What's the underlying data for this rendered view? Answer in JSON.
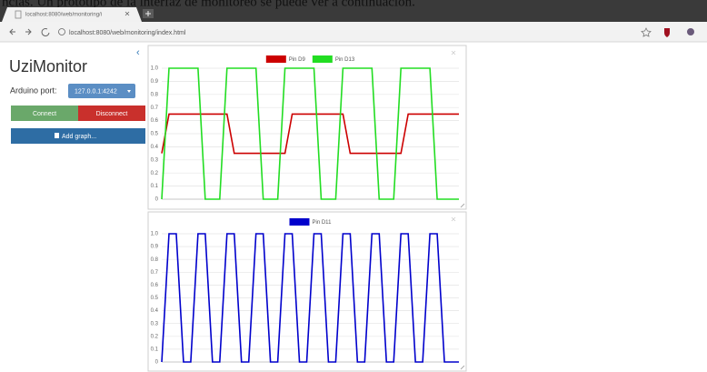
{
  "caption": "ncias. Un prototipo de la interfaz de monitoreo se puede ver a continuación.",
  "browser": {
    "tab_title": "localhost:8080/web/monitoring/i",
    "address": "localhost:8080/web/monitoring/index.html"
  },
  "sidebar": {
    "title": "UziMonitor",
    "port_label": "Arduino port:",
    "port_value": "127.0.0.1:4242",
    "connect": "Connect",
    "disconnect": "Disconnect",
    "add_graph": "Add graph..."
  },
  "chart_data": [
    {
      "type": "line",
      "series": [
        {
          "name": "Pin D9",
          "color": "#cc0000",
          "values": [
            0.35,
            0.65,
            0.65,
            0.65,
            0.65,
            0.65,
            0.65,
            0.65,
            0.65,
            0.65,
            0.35,
            0.35,
            0.35,
            0.35,
            0.35,
            0.35,
            0.35,
            0.35,
            0.65,
            0.65,
            0.65,
            0.65,
            0.65,
            0.65,
            0.65,
            0.65,
            0.35,
            0.35,
            0.35,
            0.35,
            0.35,
            0.35,
            0.35,
            0.35,
            0.65,
            0.65,
            0.65,
            0.65,
            0.65,
            0.65,
            0.65,
            0.65
          ]
        },
        {
          "name": "Pin D13",
          "color": "#22dd22",
          "values": [
            0,
            1,
            1,
            1,
            1,
            1,
            0,
            0,
            0,
            1,
            1,
            1,
            1,
            1,
            0,
            0,
            0,
            1,
            1,
            1,
            1,
            1,
            0,
            0,
            0,
            1,
            1,
            1,
            1,
            1,
            0,
            0,
            0,
            1,
            1,
            1,
            1,
            1,
            0,
            0,
            0,
            0
          ]
        }
      ],
      "ylim": [
        0,
        1
      ],
      "yticks": [
        0,
        0.1,
        0.2,
        0.3,
        0.4,
        0.5,
        0.6,
        0.7,
        0.8,
        0.9,
        {
          "value": 1,
          "label": "1.0"
        }
      ],
      "grid": true
    },
    {
      "type": "line",
      "series": [
        {
          "name": "Pin D11",
          "color": "#0000cc",
          "values": [
            0,
            1,
            1,
            0,
            0,
            1,
            1,
            0,
            0,
            1,
            1,
            0,
            0,
            1,
            1,
            0,
            0,
            1,
            1,
            0,
            0,
            1,
            1,
            0,
            0,
            1,
            1,
            0,
            0,
            1,
            1,
            0,
            0,
            1,
            1,
            0,
            0,
            1,
            1,
            0,
            0,
            0
          ]
        }
      ],
      "ylim": [
        0,
        1
      ],
      "yticks": [
        0,
        0.1,
        0.2,
        0.3,
        0.4,
        0.5,
        0.6,
        0.7,
        0.8,
        0.9,
        {
          "value": 1,
          "label": "1.0"
        }
      ],
      "grid": true
    }
  ]
}
